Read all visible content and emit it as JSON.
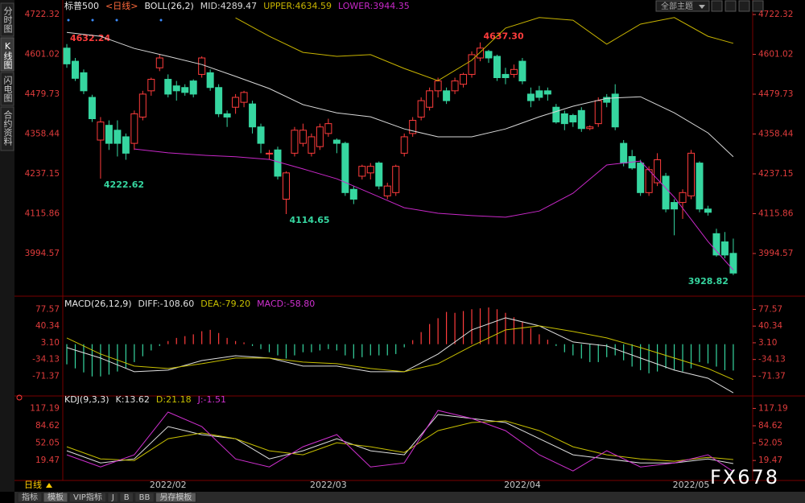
{
  "sidebar": {
    "tabs": [
      "分时图",
      "K线图",
      "闪电图",
      "合约资料"
    ]
  },
  "toolbar": {
    "theme_button": "全部主题"
  },
  "bottom_bar": {
    "period": "日线",
    "tabs": [
      "指标",
      "模板",
      "VIP指标",
      "J",
      "B",
      "BB",
      "另存模板"
    ]
  },
  "watermark": "FX678",
  "chart_data": [
    {
      "type": "candlestick",
      "title": "标普500",
      "subtitle": "<日线>",
      "indicator": "BOLL(26,2)",
      "categories": [
        null,
        null,
        null,
        null,
        null,
        null,
        null,
        null,
        null,
        null,
        null,
        null,
        "2022/02",
        null,
        null,
        null,
        null,
        null,
        null,
        null,
        null,
        null,
        null,
        null,
        null,
        null,
        null,
        null,
        null,
        null,
        null,
        "2022/03",
        null,
        null,
        null,
        null,
        null,
        null,
        null,
        null,
        null,
        null,
        null,
        null,
        null,
        null,
        null,
        null,
        null,
        null,
        null,
        null,
        null,
        null,
        "2022/04",
        null,
        null,
        null,
        null,
        null,
        null,
        null,
        null,
        null,
        null,
        null,
        null,
        null,
        null,
        null,
        null,
        null,
        null,
        null,
        "2022/05",
        null,
        null,
        null,
        null,
        null
      ],
      "open": [
        4620,
        4580,
        4545,
        4470,
        4340,
        4385,
        4370,
        4350,
        4330,
        4410,
        4490,
        4560,
        4525,
        4505,
        4500,
        4520,
        4540,
        4545,
        4500,
        4420,
        4440,
        4455,
        4450,
        4380,
        4300,
        4310,
        4160,
        4300,
        4330,
        4300,
        4320,
        4360,
        4340,
        4330,
        4190,
        4230,
        4240,
        4270,
        4170,
        4180,
        4300,
        4360,
        4410,
        4440,
        4490,
        4490,
        4490,
        4510,
        4540,
        4590,
        4610,
        4595,
        4540,
        4540,
        4580,
        4480,
        4490,
        4490,
        4440,
        4420,
        4415,
        4430,
        4375,
        4390,
        4470,
        4480,
        4330,
        4290,
        4270,
        4180,
        4210,
        4230,
        4150,
        4150,
        4170,
        4270,
        4130,
        4055,
        4030,
        3995
      ],
      "high": [
        4632.24,
        4590,
        4555,
        4478,
        4410,
        4400,
        4400,
        4360,
        4430,
        4490,
        4530,
        4600,
        4540,
        4520,
        4510,
        4525,
        4595,
        4555,
        4510,
        4430,
        4480,
        4490,
        4460,
        4390,
        4310,
        4320,
        4245,
        4380,
        4390,
        4360,
        4390,
        4405,
        4345,
        4335,
        4200,
        4265,
        4270,
        4275,
        4210,
        4265,
        4360,
        4410,
        4470,
        4500,
        4530,
        4500,
        4530,
        4545,
        4610,
        4637.3,
        4615,
        4600,
        4560,
        4570,
        4590,
        4500,
        4505,
        4500,
        4450,
        4430,
        4420,
        4440,
        4385,
        4470,
        4480,
        4510,
        4340,
        4310,
        4280,
        4260,
        4300,
        4240,
        4160,
        4190,
        4310,
        4275,
        4140,
        4070,
        4060,
        4040
      ],
      "low": [
        4560,
        4520,
        4480,
        4395,
        4222.62,
        4310,
        4290,
        4280,
        4310,
        4400,
        4475,
        4550,
        4470,
        4460,
        4475,
        4470,
        4530,
        4490,
        4410,
        4380,
        4420,
        4440,
        4360,
        4300,
        4280,
        4220,
        4114.65,
        4290,
        4320,
        4290,
        4310,
        4350,
        4300,
        4170,
        4145,
        4220,
        4220,
        4190,
        4160,
        4170,
        4290,
        4350,
        4400,
        4430,
        4470,
        4450,
        4480,
        4500,
        4530,
        4580,
        4575,
        4520,
        4510,
        4530,
        4510,
        4440,
        4460,
        4460,
        4390,
        4370,
        4380,
        4365,
        4370,
        4380,
        4440,
        4370,
        4260,
        4250,
        4170,
        4170,
        4200,
        4120,
        4050,
        4100,
        4160,
        4120,
        4110,
        3985,
        3980,
        3928.82
      ],
      "close": [
        4572,
        4528,
        4490,
        4405,
        4395,
        4330,
        4330,
        4300,
        4420,
        4480,
        4525,
        4590,
        4480,
        4490,
        4485,
        4480,
        4590,
        4500,
        4420,
        4410,
        4470,
        4485,
        4380,
        4330,
        4300,
        4230,
        4240,
        4370,
        4370,
        4350,
        4380,
        4390,
        4330,
        4180,
        4160,
        4260,
        4260,
        4200,
        4200,
        4260,
        4350,
        4400,
        4460,
        4490,
        4520,
        4460,
        4520,
        4540,
        4600,
        4620,
        4590,
        4530,
        4530,
        4555,
        4520,
        4460,
        4470,
        4480,
        4395,
        4390,
        4395,
        4375,
        4380,
        4460,
        4455,
        4380,
        4270,
        4255,
        4180,
        4250,
        4280,
        4130,
        4130,
        4180,
        4300,
        4130,
        4120,
        3990,
        3990,
        3935
      ],
      "up_color": "#ff3c3c",
      "down_color": "#36d6a0",
      "axis_color": "#e03c3c",
      "ylim": [
        3872,
        4742
      ],
      "yticks": [
        4722.32,
        4601.02,
        4479.73,
        4358.44,
        4237.15,
        4115.86,
        3994.57
      ],
      "grid": false,
      "annotations": [
        {
          "index": 0,
          "value": 4632.24,
          "color": "#ff3c3c"
        },
        {
          "index": 4,
          "value": 4222.62,
          "color": "#36d6a0"
        },
        {
          "index": 26,
          "value": 4114.65,
          "color": "#36d6a0"
        },
        {
          "index": 49,
          "value": 4637.3,
          "label": "4637.30",
          "color": "#ff3c3c"
        },
        {
          "index": 79,
          "value": 3928.82,
          "color": "#36d6a0"
        }
      ],
      "lines": {
        "x": [
          0,
          4,
          8,
          12,
          16,
          20,
          24,
          28,
          32,
          36,
          40,
          44,
          48,
          52,
          56,
          60,
          64,
          68,
          72,
          76,
          79
        ],
        "series": [
          {
            "label": "MID:4289.47",
            "color": "#d8d8d8",
            "values": [
              4668,
              4656,
              4619,
              4595,
              4570,
              4534,
              4497,
              4448,
              4423,
              4411,
              4374,
              4350,
              4350,
              4374,
              4411,
              4443,
              4467,
              4472,
              4423,
              4362,
              4289.47
            ]
          },
          {
            "label": "UPPER:4634.59",
            "color": "#c8b400",
            "values": [
              null,
              null,
              null,
              null,
              null,
              4712,
              4656,
              4607,
              4595,
              4600,
              4558,
              4521,
              4583,
              4681,
              4713,
              4705,
              4632,
              4693,
              4713,
              4656,
              4634.59
            ]
          },
          {
            "label": "LOWER:3944.35",
            "color": "#c828c8",
            "values": [
              null,
              null,
              4313,
              4301,
              4294,
              4289,
              4281,
              4252,
              4222,
              4178,
              4134,
              4117,
              4110,
              4105,
              4124,
              4178,
              4264,
              4276,
              4166,
              4031,
              3944.35
            ]
          }
        ]
      }
    },
    {
      "type": "macd",
      "indicator": "MACD(26,12,9)",
      "histogram_label": "MACD:-58.80",
      "histogram_label_color": "#d030d0",
      "histogram": [
        -45,
        -54,
        -63,
        -72,
        -72,
        -68,
        -61,
        -54,
        -40,
        -27,
        -14,
        -4,
        7,
        14,
        18,
        22,
        29,
        32,
        25,
        14,
        7,
        4,
        -4,
        -11,
        -18,
        -25,
        -32,
        -25,
        -18,
        -18,
        -14,
        -11,
        -14,
        -25,
        -32,
        -29,
        -25,
        -25,
        -25,
        -22,
        -7,
        9,
        27,
        45,
        58,
        72,
        70,
        74,
        78,
        80,
        82,
        78,
        70,
        60,
        50,
        36,
        22,
        10,
        -4,
        -18,
        -25,
        -32,
        -40,
        -40,
        -29,
        -25,
        -36,
        -50,
        -58,
        -65,
        -61,
        -54,
        -58,
        -61,
        -54,
        -40,
        -43,
        -50,
        -58,
        -58.8
      ],
      "up_color": "#ff3c3c",
      "down_color": "#36d6a0",
      "axis_color": "#e03c3c",
      "ylim": [
        -112,
        100
      ],
      "yticks": [
        77.57,
        40.34,
        {
          "value": 3.1,
          "label": "3.10"
        },
        -34.13,
        -71.37
      ],
      "lines": {
        "x": [
          0,
          4,
          8,
          12,
          16,
          20,
          24,
          28,
          32,
          36,
          40,
          44,
          48,
          52,
          56,
          60,
          64,
          68,
          72,
          76,
          79
        ],
        "series": [
          {
            "label": "DIFF:-108.60",
            "color": "#e0e0e0",
            "values": [
              -7.7,
              -31,
              -61.6,
              -58,
              -36.5,
              -25.7,
              -31,
              -49,
              -49,
              -61.6,
              -61.6,
              -22,
              31.9,
              58.8,
              40.9,
              4.9,
              -4.1,
              -31,
              -58,
              -76,
              -108.6
            ]
          },
          {
            "label": "DEA:-79.20",
            "color": "#c8c000",
            "values": [
              13.9,
              -22,
              -49,
              -54.4,
              -43.6,
              -31,
              -31,
              -40,
              -43.6,
              -54.4,
              -61.6,
              -43.6,
              -4.1,
              31.9,
              40.9,
              28.3,
              13.9,
              -7.7,
              -31,
              -54.4,
              -79.2
            ]
          }
        ]
      }
    },
    {
      "type": "line",
      "indicator": "KDJ(9,3,3)",
      "axis_color": "#e03c3c",
      "ylim": [
        -15,
        136
      ],
      "yticks": [
        117.19,
        84.62,
        52.05,
        19.47
      ],
      "lines": {
        "x": [
          0,
          4,
          8,
          12,
          16,
          20,
          24,
          28,
          32,
          36,
          40,
          44,
          48,
          52,
          56,
          60,
          64,
          68,
          72,
          76,
          79
        ],
        "series": [
          {
            "label": "K:13.62",
            "color": "#e0e0e0",
            "values": [
              37.7,
              14.9,
              22.5,
              83.1,
              67.9,
              60.4,
              22.5,
              37.7,
              60.4,
              37.7,
              30.1,
              105.8,
              98.2,
              90.7,
              60.4,
              30.1,
              22.5,
              14.9,
              14.9,
              22.5,
              13.62
            ]
          },
          {
            "label": "D:21.18",
            "color": "#c8c000",
            "values": [
              45.2,
              22.5,
              19.5,
              60.4,
              71,
              60.4,
              37.7,
              30.1,
              52.8,
              45.2,
              34.6,
              75.5,
              90.7,
              93.7,
              75.5,
              45.2,
              30.1,
              22.5,
              18,
              25.5,
              21.18
            ]
          },
          {
            "label": "J:-1.51",
            "color": "#d030d0",
            "values": [
              30.1,
              7.4,
              30.1,
              110.4,
              83.1,
              22.5,
              7.4,
              45.2,
              68,
              7.4,
              14.9,
              113.4,
              98.2,
              75.5,
              30.1,
              -0.2,
              37.7,
              7.4,
              14.9,
              30.1,
              -1.51
            ]
          }
        ]
      }
    }
  ]
}
